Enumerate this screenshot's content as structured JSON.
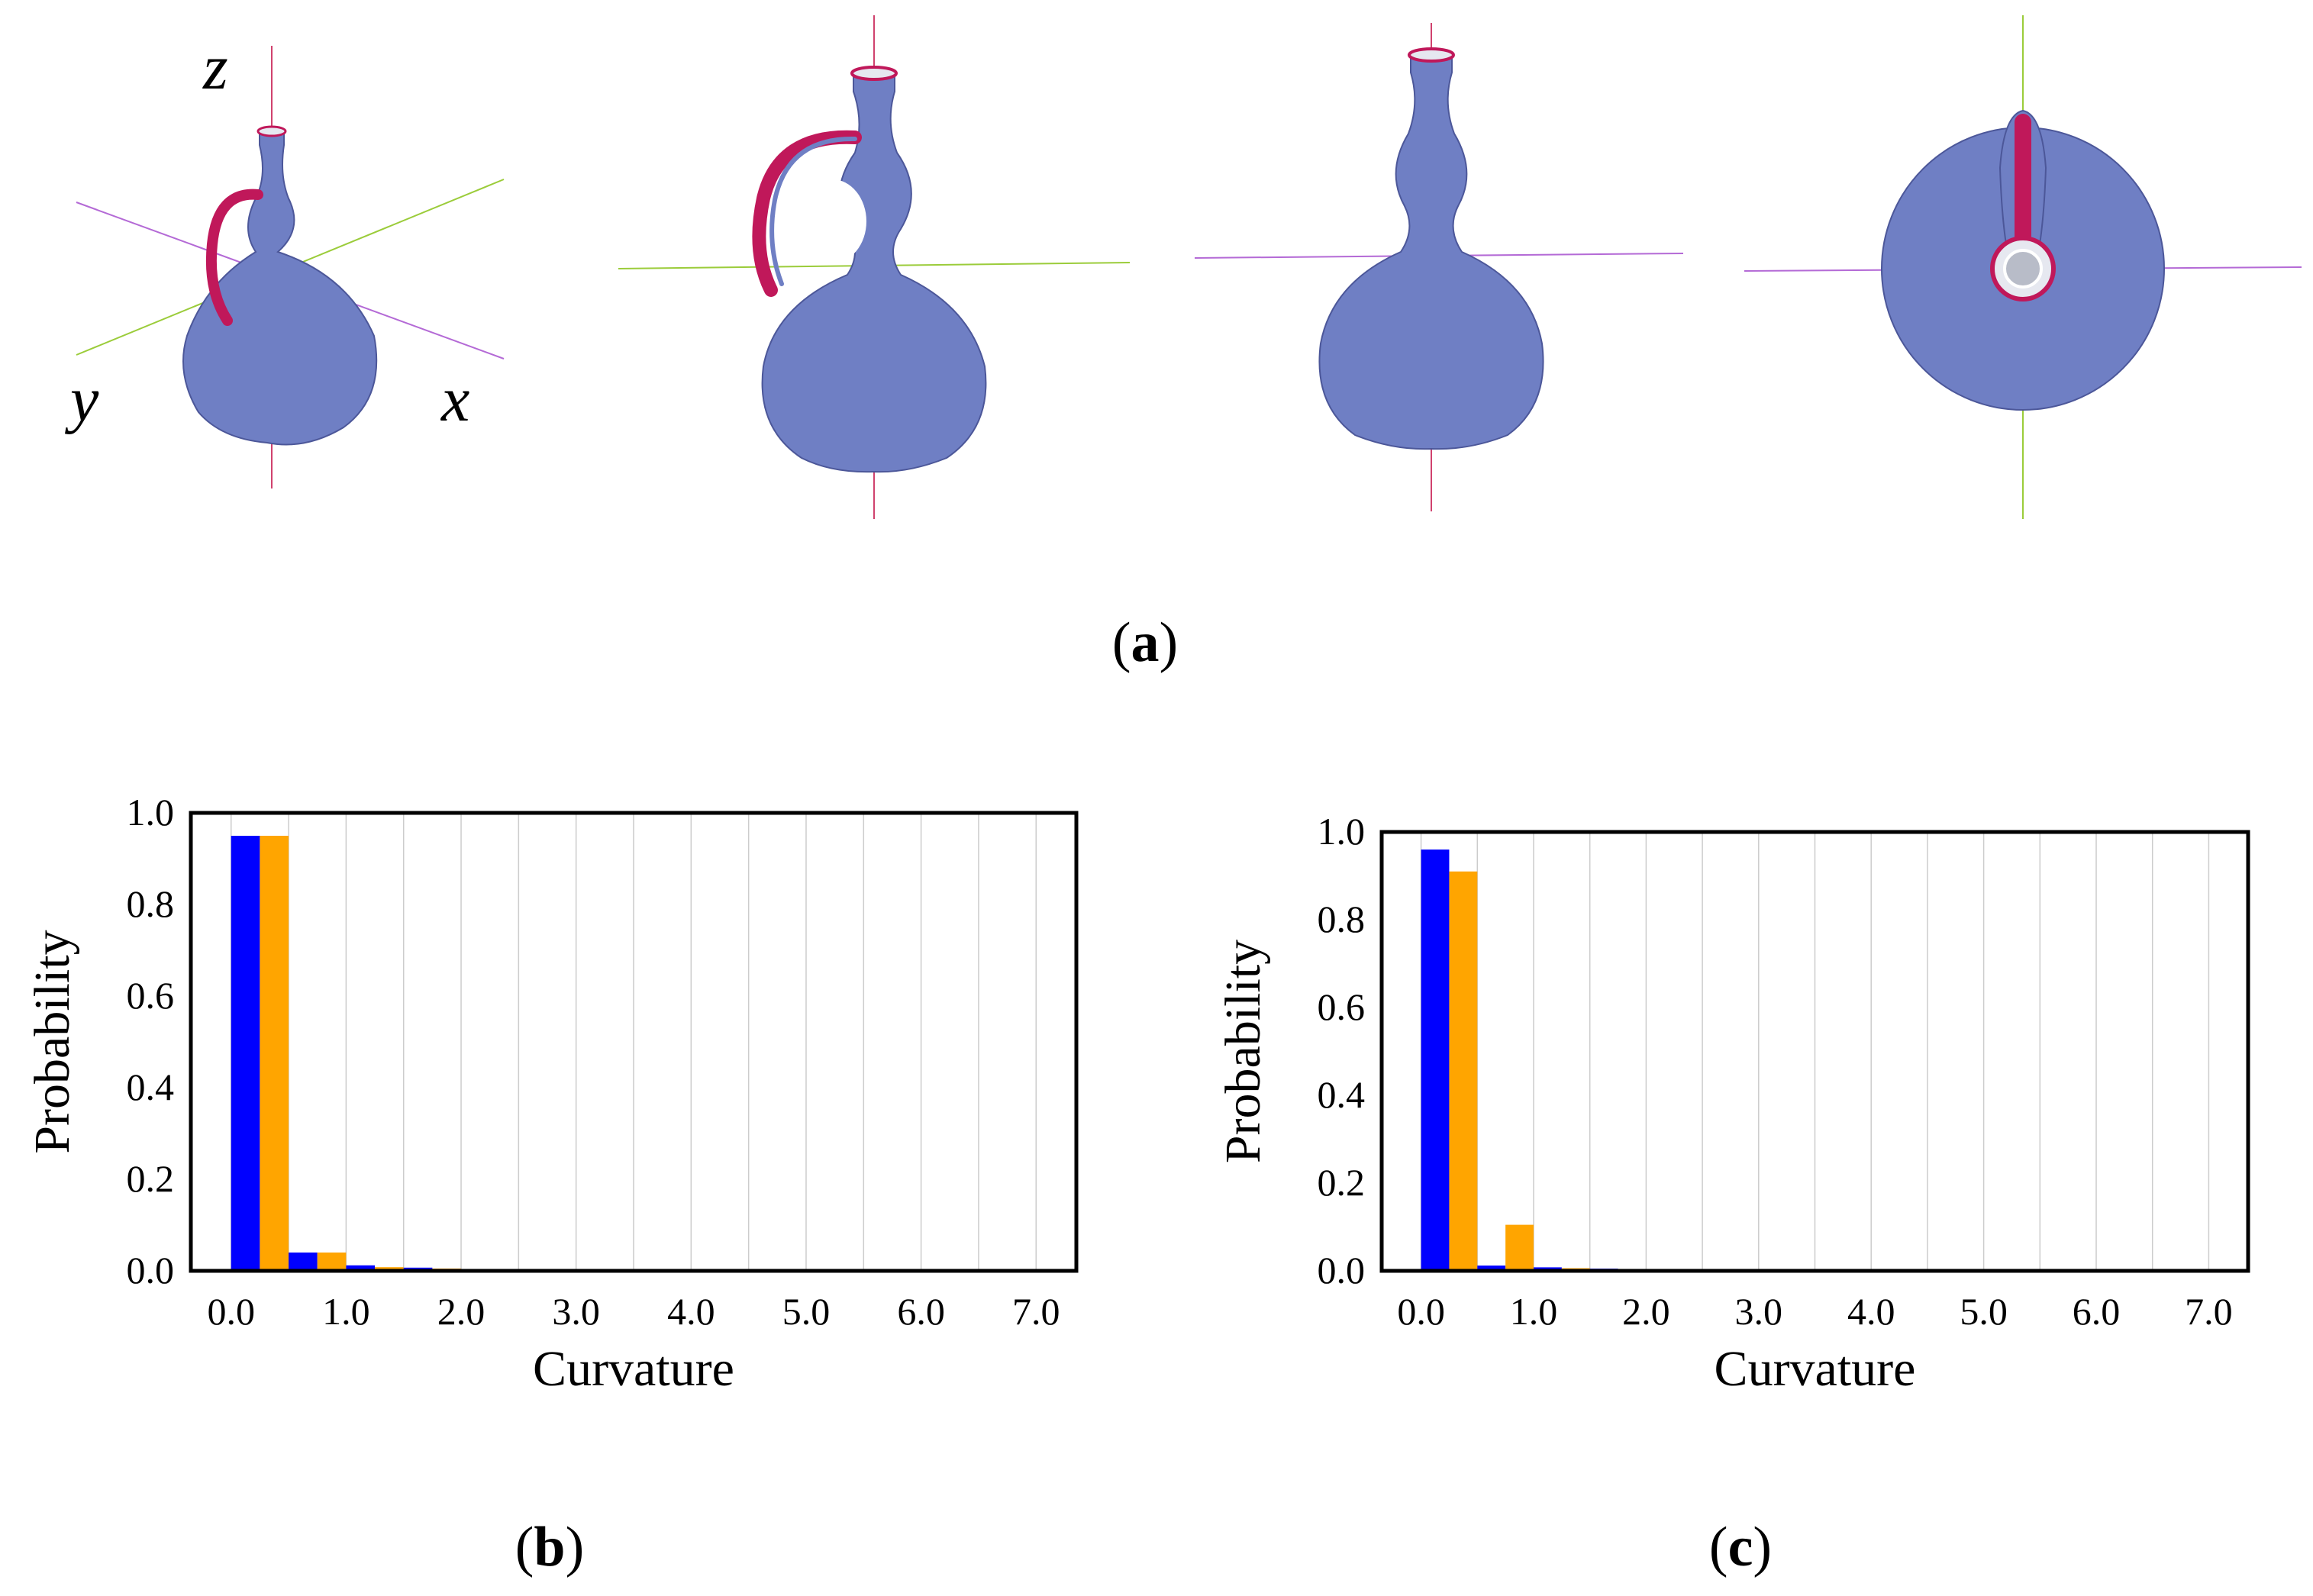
{
  "panel_a": {
    "axis_labels": {
      "z": "z",
      "y": "y",
      "x": "x"
    },
    "caption": {
      "open": "(",
      "letter": "a",
      "close": ")"
    },
    "colors": {
      "body": "#6f7fc4",
      "body_dark": "#3f4a86",
      "edge": "#c0185a",
      "axis_red": "#d0426e",
      "axis_green": "#9bcc3a",
      "axis_purple": "#b46ad6"
    }
  },
  "chart_data": [
    {
      "type": "bar",
      "panel": "b",
      "xlabel": "Curvature",
      "ylabel": "Probability",
      "x_ticks": [
        "0.0",
        "1.0",
        "2.0",
        "3.0",
        "4.0",
        "5.0",
        "6.0",
        "7.0"
      ],
      "y_ticks": [
        "0.0",
        "0.2",
        "0.4",
        "0.6",
        "0.8",
        "1.0"
      ],
      "xlim": [
        -0.35,
        7.35
      ],
      "ylim": [
        0,
        1.0
      ],
      "bin_width": 0.5,
      "bins": [
        0.0,
        0.5,
        1.0,
        1.5,
        2.0,
        2.5,
        3.0
      ],
      "grid": "vertical",
      "series": [
        {
          "color": "#0000ff",
          "values": [
            0.95,
            0.04,
            0.012,
            0.007,
            0.003,
            0.002,
            0.001
          ]
        },
        {
          "color": "#ffa500",
          "values": [
            0.95,
            0.04,
            0.008,
            0.005,
            0.004,
            0.002,
            0.001
          ]
        }
      ],
      "caption": {
        "open": "(",
        "letter": "b",
        "close": ")"
      }
    },
    {
      "type": "bar",
      "panel": "c",
      "xlabel": "Curvature",
      "ylabel": "Probability",
      "x_ticks": [
        "0.0",
        "1.0",
        "2.0",
        "3.0",
        "4.0",
        "5.0",
        "6.0",
        "7.0"
      ],
      "y_ticks": [
        "0.0",
        "0.2",
        "0.4",
        "0.6",
        "0.8",
        "1.0"
      ],
      "xlim": [
        -0.35,
        7.35
      ],
      "ylim": [
        0,
        1.0
      ],
      "bin_width": 0.5,
      "bins": [
        0.0,
        0.5,
        1.0,
        1.5,
        2.0,
        2.5,
        3.0
      ],
      "grid": "vertical",
      "series": [
        {
          "color": "#0000ff",
          "values": [
            0.96,
            0.012,
            0.008,
            0.005,
            0.003,
            0.001,
            0.001
          ]
        },
        {
          "color": "#ffa500",
          "values": [
            0.91,
            0.105,
            0.006,
            0.004,
            0.002,
            0.001,
            0.001
          ]
        }
      ],
      "caption": {
        "open": "(",
        "letter": "c",
        "close": ")"
      }
    }
  ]
}
